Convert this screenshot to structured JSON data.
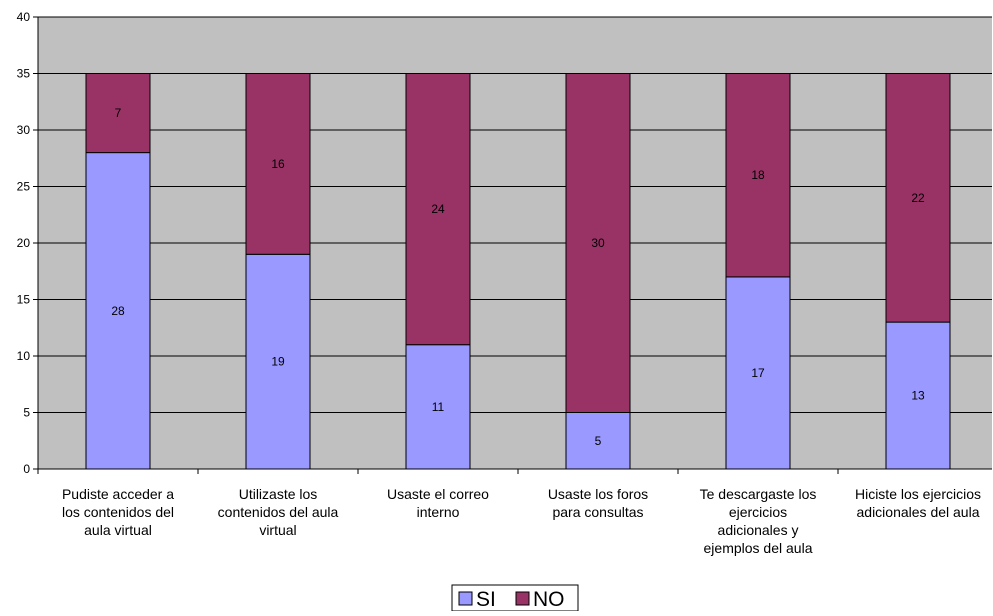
{
  "chart_data": {
    "type": "bar",
    "stacked": true,
    "categories": [
      [
        "Pudiste acceder a",
        "los contenidos del",
        "aula virtual"
      ],
      [
        "Utilizaste los",
        "contenidos del aula",
        "virtual"
      ],
      [
        "Usaste el correo",
        "interno"
      ],
      [
        "Usaste los foros",
        "para consultas"
      ],
      [
        "Te descargaste los",
        "ejercicios",
        "adicionales y",
        "ejemplos del aula"
      ],
      [
        "Hiciste los ejercicios",
        "adicionales del aula"
      ]
    ],
    "series": [
      {
        "name": "SI",
        "values": [
          28,
          19,
          11,
          5,
          17,
          13
        ],
        "color": "#9999ff"
      },
      {
        "name": "NO",
        "values": [
          7,
          16,
          24,
          30,
          18,
          22
        ],
        "color": "#993366"
      }
    ],
    "ylim": [
      0,
      40
    ],
    "yticks": [
      0,
      5,
      10,
      15,
      20,
      25,
      30,
      35,
      40
    ],
    "plot_background": "#c0c0c0",
    "gridlines": true,
    "legend_position": "bottom"
  }
}
